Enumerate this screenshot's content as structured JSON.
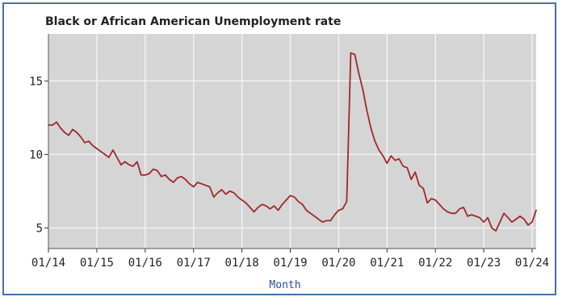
{
  "chart_data": {
    "type": "line",
    "title": "Black or African American  Unemployment rate",
    "xlabel": "Month",
    "ylabel": "",
    "x_start": "2014-01",
    "x_end": "2024-02",
    "xlim": [
      "2014-01",
      "2024-02"
    ],
    "ylim": [
      3.6,
      18.2
    ],
    "grid": true,
    "x_ticks": [
      {
        "date": "2014-01",
        "label": "01/14"
      },
      {
        "date": "2015-01",
        "label": "01/15"
      },
      {
        "date": "2016-01",
        "label": "01/16"
      },
      {
        "date": "2017-01",
        "label": "01/17"
      },
      {
        "date": "2018-01",
        "label": "01/18"
      },
      {
        "date": "2019-01",
        "label": "01/19"
      },
      {
        "date": "2020-01",
        "label": "01/20"
      },
      {
        "date": "2021-01",
        "label": "01/21"
      },
      {
        "date": "2022-01",
        "label": "01/22"
      },
      {
        "date": "2023-01",
        "label": "01/23"
      },
      {
        "date": "2024-01",
        "label": "01/24"
      }
    ],
    "y_ticks": [
      {
        "value": 5,
        "label": "5"
      },
      {
        "value": 10,
        "label": "10"
      },
      {
        "value": 15,
        "label": "15"
      }
    ],
    "series": [
      {
        "color": "#a0282a",
        "x": [
          "2014-01",
          "2014-02",
          "2014-03",
          "2014-04",
          "2014-05",
          "2014-06",
          "2014-07",
          "2014-08",
          "2014-09",
          "2014-10",
          "2014-11",
          "2014-12",
          "2015-01",
          "2015-02",
          "2015-03",
          "2015-04",
          "2015-05",
          "2015-06",
          "2015-07",
          "2015-08",
          "2015-09",
          "2015-10",
          "2015-11",
          "2015-12",
          "2016-01",
          "2016-02",
          "2016-03",
          "2016-04",
          "2016-05",
          "2016-06",
          "2016-07",
          "2016-08",
          "2016-09",
          "2016-10",
          "2016-11",
          "2016-12",
          "2017-01",
          "2017-02",
          "2017-03",
          "2017-04",
          "2017-05",
          "2017-06",
          "2017-07",
          "2017-08",
          "2017-09",
          "2017-10",
          "2017-11",
          "2017-12",
          "2018-01",
          "2018-02",
          "2018-03",
          "2018-04",
          "2018-05",
          "2018-06",
          "2018-07",
          "2018-08",
          "2018-09",
          "2018-10",
          "2018-11",
          "2018-12",
          "2019-01",
          "2019-02",
          "2019-03",
          "2019-04",
          "2019-05",
          "2019-06",
          "2019-07",
          "2019-08",
          "2019-09",
          "2019-10",
          "2019-11",
          "2019-12",
          "2020-01",
          "2020-02",
          "2020-03",
          "2020-04",
          "2020-05",
          "2020-06",
          "2020-07",
          "2020-08",
          "2020-09",
          "2020-10",
          "2020-11",
          "2020-12",
          "2021-01",
          "2021-02",
          "2021-03",
          "2021-04",
          "2021-05",
          "2021-06",
          "2021-07",
          "2021-08",
          "2021-09",
          "2021-10",
          "2021-11",
          "2021-12",
          "2022-01",
          "2022-02",
          "2022-03",
          "2022-04",
          "2022-05",
          "2022-06",
          "2022-07",
          "2022-08",
          "2022-09",
          "2022-10",
          "2022-11",
          "2022-12",
          "2023-01",
          "2023-02",
          "2023-03",
          "2023-04",
          "2023-05",
          "2023-06",
          "2023-07",
          "2023-08",
          "2023-09",
          "2023-10",
          "2023-11",
          "2023-12",
          "2024-01",
          "2024-02"
        ],
        "y": [
          12.0,
          12.0,
          12.2,
          11.8,
          11.5,
          11.3,
          11.7,
          11.5,
          11.2,
          10.8,
          10.9,
          10.6,
          10.4,
          10.2,
          10.0,
          9.8,
          10.3,
          9.8,
          9.3,
          9.5,
          9.3,
          9.2,
          9.5,
          8.6,
          8.6,
          8.7,
          9.0,
          8.9,
          8.5,
          8.6,
          8.3,
          8.1,
          8.4,
          8.5,
          8.3,
          8.0,
          7.8,
          8.1,
          8.0,
          7.9,
          7.8,
          7.1,
          7.4,
          7.6,
          7.3,
          7.5,
          7.4,
          7.1,
          6.9,
          6.7,
          6.4,
          6.1,
          6.4,
          6.6,
          6.5,
          6.3,
          6.5,
          6.2,
          6.6,
          6.9,
          7.2,
          7.1,
          6.8,
          6.6,
          6.2,
          6.0,
          5.8,
          5.6,
          5.4,
          5.5,
          5.5,
          5.9,
          6.2,
          6.3,
          6.8,
          16.9,
          16.8,
          15.5,
          14.4,
          13.0,
          11.8,
          10.9,
          10.3,
          9.9,
          9.4,
          9.9,
          9.6,
          9.7,
          9.2,
          9.1,
          8.3,
          8.8,
          7.9,
          7.7,
          6.7,
          7.0,
          6.9,
          6.6,
          6.3,
          6.1,
          6.0,
          6.0,
          6.3,
          6.4,
          5.8,
          5.9,
          5.8,
          5.7,
          5.4,
          5.7,
          5.0,
          4.8,
          5.4,
          6.0,
          5.7,
          5.4,
          5.6,
          5.8,
          5.6,
          5.2,
          5.4,
          6.2
        ]
      }
    ]
  }
}
